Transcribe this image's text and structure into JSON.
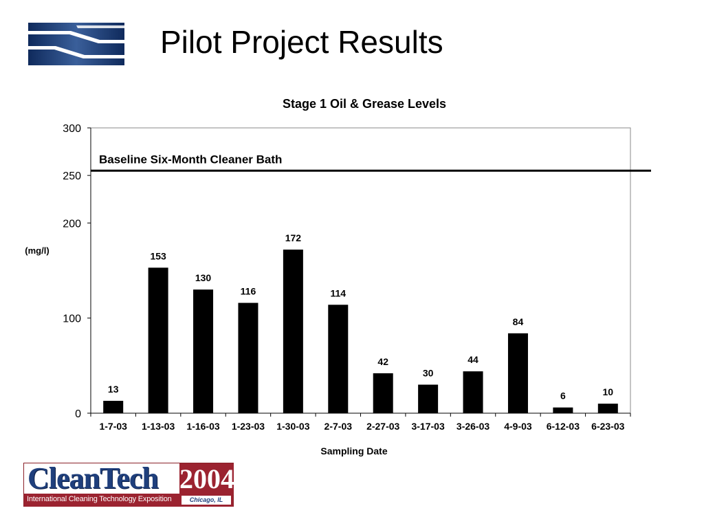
{
  "slide": {
    "title": "Pilot Project Results"
  },
  "logo_bottom": {
    "name": "CleanTech",
    "year": "2004",
    "tagline": "International Cleaning Technology Exposition",
    "location": "Chicago, IL"
  },
  "colors": {
    "bars": "#000000",
    "baseline": "#000000",
    "logo_blue": "#1f3f7c",
    "logo_red": "#9b2330"
  },
  "chart_data": {
    "type": "bar",
    "title": "Stage 1 Oil & Grease Levels",
    "xlabel": "Sampling Date",
    "ylabel": "(mg/l)",
    "ylim": [
      0,
      300
    ],
    "yticks": [
      0,
      100,
      200,
      250,
      300
    ],
    "grid": false,
    "legend": "none",
    "categories": [
      "1-7-03",
      "1-13-03",
      "1-16-03",
      "1-23-03",
      "1-30-03",
      "2-7-03",
      "2-27-03",
      "3-17-03",
      "3-26-03",
      "4-9-03",
      "6-12-03",
      "6-23-03"
    ],
    "values": [
      13,
      153,
      130,
      116,
      172,
      114,
      42,
      30,
      44,
      84,
      6,
      10
    ],
    "baseline": {
      "label": "Baseline Six-Month Cleaner Bath",
      "value": 255
    }
  }
}
